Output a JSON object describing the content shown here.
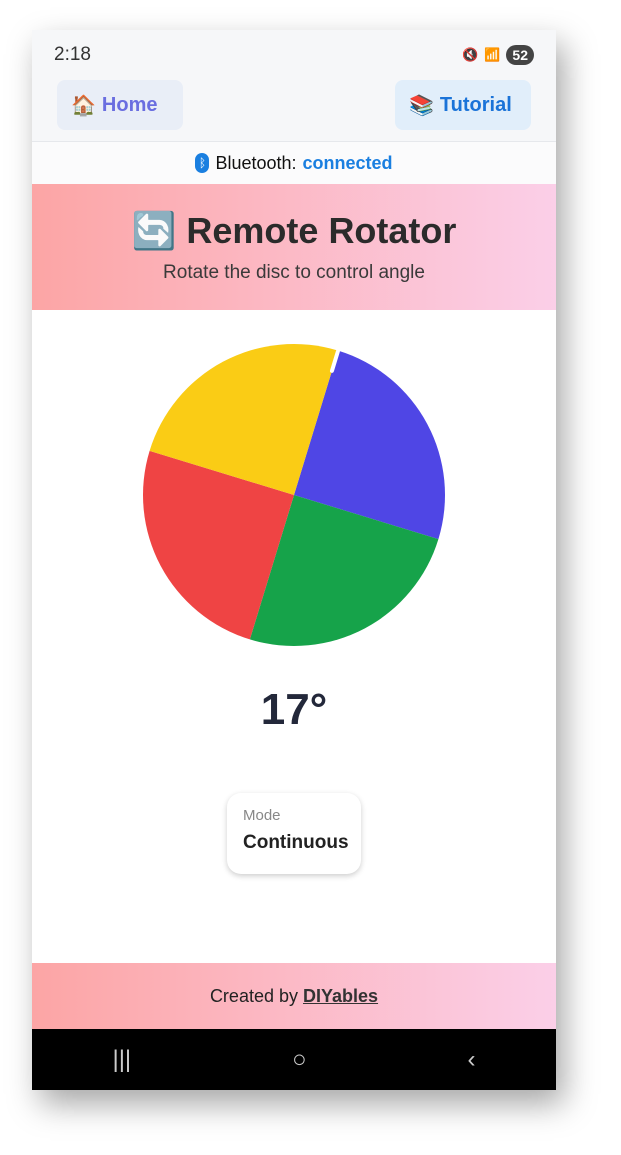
{
  "status_bar": {
    "time": "2:18",
    "battery": "52"
  },
  "nav": {
    "home_label": "Home",
    "home_icon": "🏠",
    "tutorial_label": "Tutorial",
    "tutorial_icon": "📚"
  },
  "bluetooth": {
    "label": "Bluetooth:",
    "status": "connected",
    "color": "#1a7fe0"
  },
  "header": {
    "icon": "🔄",
    "title": "Remote Rotator",
    "subtitle": "Rotate the disc to control angle"
  },
  "disc": {
    "angle_deg": 17,
    "segments": [
      {
        "color": "#4f46e5"
      },
      {
        "color": "#16a34a"
      },
      {
        "color": "#ef4444"
      },
      {
        "color": "#facc15"
      }
    ]
  },
  "angle_display": "17°",
  "mode": {
    "label": "Mode",
    "value": "Continuous"
  },
  "footer": {
    "prefix": "Created by",
    "link": "DIYables"
  },
  "system_nav": {
    "recents": "|||",
    "home": "○",
    "back": "‹"
  }
}
